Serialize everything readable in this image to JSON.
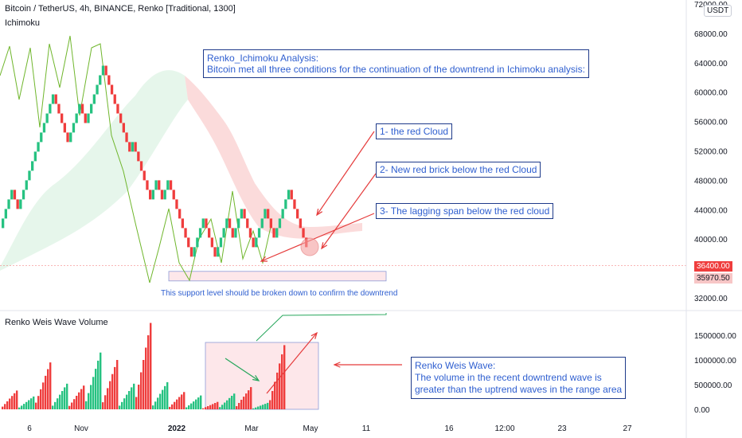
{
  "header": {
    "symbol_line": "Bitcoin / TetherUS, 4h, BINANCE, Renko [Traditional, 1300]",
    "indicator": "Ichimoku",
    "currency": "USDT"
  },
  "volume_panel": {
    "title": "Renko Weis Wave Volume"
  },
  "annotations": {
    "analysis_title": "Renko_Ichimoku Analysis:",
    "analysis_body": "Bitcoin met all three conditions for the continuation of the downtrend in Ichimoku analysis:",
    "cond1": "1- the red Cloud",
    "cond2": "2- New red brick below the red Cloud",
    "cond3": "3- The lagging span below the red cloud",
    "support_note": "This support level should be broken down to confirm the downtrend",
    "weis_title": "Renko Weis Wave:",
    "weis_line1": "The volume in the recent downtrend wave is",
    "weis_line2": "greater than the uptrend waves in the range area"
  },
  "price_badges": {
    "last_price": "36400.00",
    "other_price": "35970.50"
  },
  "colors": {
    "up": "#26c281",
    "down": "#ef3d3d",
    "lagging": "#6fb62c",
    "annotation": "#2f5fd0",
    "cloud_red": "#fbd7d7",
    "cloud_green": "#e2f5e7"
  },
  "chart_data": {
    "type": "renko",
    "price_axis_ticks": [
      72000,
      68000,
      64000,
      60000,
      56000,
      52000,
      48000,
      44000,
      40000,
      36000,
      32000
    ],
    "price_axis_labels": [
      "72000.00",
      "68000.00",
      "64000.00",
      "60000.00",
      "56000.00",
      "52000.00",
      "48000.00",
      "44000.00",
      "40000.00",
      "36000.00",
      "32000.00"
    ],
    "volume_axis_ticks": [
      1500000,
      1000000,
      500000,
      0
    ],
    "volume_axis_labels": [
      "1500000.00",
      "1000000.00",
      "500000.00",
      "0.00"
    ],
    "x_axis_labels": [
      "6",
      "Nov",
      "2022",
      "Mar",
      "May",
      "11",
      "16",
      "12:00",
      "23",
      "27"
    ],
    "brick_size": 1300,
    "bricks": [
      "up",
      "up",
      "up",
      "up",
      "down",
      "down",
      "up",
      "up",
      "up",
      "up",
      "up",
      "up",
      "up",
      "up",
      "up",
      "up",
      "up",
      "up",
      "down",
      "down",
      "down",
      "down",
      "down",
      "up",
      "up",
      "up",
      "up",
      "down",
      "down",
      "up",
      "up",
      "up",
      "up",
      "up",
      "up",
      "down",
      "down",
      "down",
      "down",
      "down",
      "down",
      "down",
      "down",
      "down",
      "up",
      "down",
      "down",
      "down",
      "down",
      "down",
      "down",
      "up",
      "up",
      "down",
      "down",
      "up",
      "up",
      "down",
      "down",
      "down",
      "down",
      "down",
      "down",
      "down",
      "down",
      "up",
      "up",
      "up",
      "up",
      "down",
      "down",
      "down",
      "down",
      "up",
      "up",
      "up",
      "up",
      "down",
      "down",
      "up",
      "up",
      "up",
      "down",
      "down",
      "down",
      "down",
      "up",
      "up",
      "up",
      "up",
      "down",
      "down",
      "down",
      "up",
      "up",
      "up",
      "up",
      "up",
      "down",
      "down",
      "down",
      "down",
      "down",
      "down"
    ],
    "last_price": 36400,
    "support_range": [
      34300,
      35600
    ],
    "weis_wave_volumes": [
      {
        "dir": "down",
        "volume": 380000
      },
      {
        "dir": "up",
        "volume": 260000
      },
      {
        "dir": "down",
        "volume": 950000
      },
      {
        "dir": "up",
        "volume": 520000
      },
      {
        "dir": "down",
        "volume": 480000
      },
      {
        "dir": "up",
        "volume": 1150000
      },
      {
        "dir": "down",
        "volume": 1000000
      },
      {
        "dir": "up",
        "volume": 520000
      },
      {
        "dir": "down",
        "volume": 1750000
      },
      {
        "dir": "up",
        "volume": 550000
      },
      {
        "dir": "down",
        "volume": 350000
      },
      {
        "dir": "up",
        "volume": 280000
      },
      {
        "dir": "down",
        "volume": 150000
      },
      {
        "dir": "up",
        "volume": 320000
      },
      {
        "dir": "down",
        "volume": 450000
      },
      {
        "dir": "up",
        "volume": 130000
      },
      {
        "dir": "down",
        "volume": 1300000
      }
    ]
  }
}
